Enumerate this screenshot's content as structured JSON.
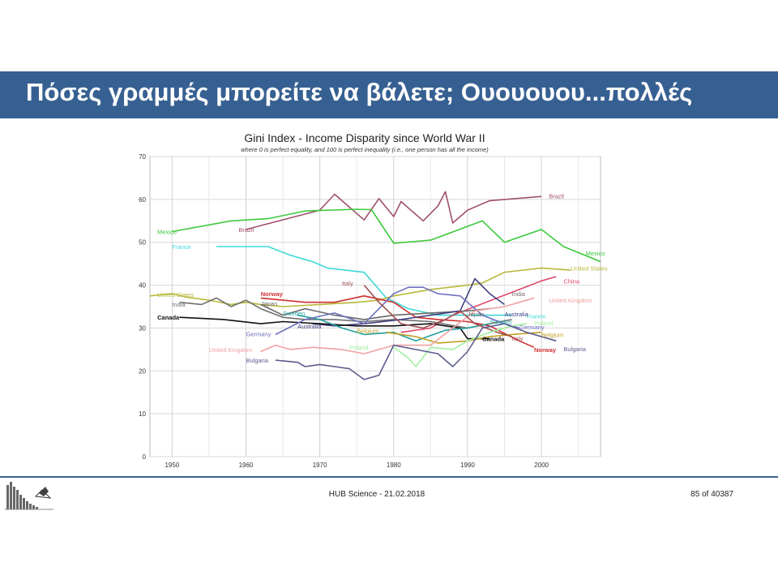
{
  "slide": {
    "title": "Πόσες γραμμές  μπορείτε να βάλετε;  Ουουουου...πολλές",
    "footer_center": "HUB Science - 21.02.2018",
    "footer_right": "85 of 40387"
  },
  "chart_data": {
    "type": "line",
    "title": "Gini Index - Income Disparity since World War II",
    "subtitle": "where 0 is perfect equality, and 100 is perfect inequality (i.e., one person has all the income)",
    "xlabel": "",
    "ylabel": "",
    "xlim": [
      1947,
      2008
    ],
    "ylim": [
      0,
      70
    ],
    "xticks": [
      1950,
      1960,
      1970,
      1980,
      1990,
      2000
    ],
    "yticks": [
      0,
      10,
      20,
      30,
      40,
      50,
      60,
      70
    ],
    "grid": "both",
    "series": [
      {
        "name": "Brazil",
        "color": "#a0506e",
        "label_start": {
          "x": 1959,
          "y": 53
        },
        "label_end": {
          "x": 2001,
          "y": 60.8
        },
        "points": [
          [
            1960,
            53
          ],
          [
            1970,
            57.5
          ],
          [
            1972,
            61.2
          ],
          [
            1976,
            55.2
          ],
          [
            1978,
            60.2
          ],
          [
            1980,
            56
          ],
          [
            1981,
            59.5
          ],
          [
            1983,
            56.5
          ],
          [
            1984,
            55
          ],
          [
            1986,
            58.5
          ],
          [
            1987,
            61.8
          ],
          [
            1988,
            54.5
          ],
          [
            1990,
            57.5
          ],
          [
            1993,
            59.7
          ],
          [
            2000,
            60.7
          ]
        ]
      },
      {
        "name": "Mexico",
        "color": "#3cc93c",
        "label_start": {
          "x": 1948,
          "y": 52.5
        },
        "label_end": {
          "x": 2006,
          "y": 47.5
        },
        "points": [
          [
            1950,
            52.5
          ],
          [
            1958,
            55
          ],
          [
            1963,
            55.5
          ],
          [
            1968,
            57.3
          ],
          [
            1975,
            57.7
          ],
          [
            1977,
            57.6
          ],
          [
            1980,
            49.8
          ],
          [
            1985,
            50.5
          ],
          [
            1992,
            55
          ],
          [
            1995,
            50
          ],
          [
            2000,
            53
          ],
          [
            2003,
            49
          ],
          [
            2008,
            45.5
          ]
        ]
      },
      {
        "name": "France",
        "color": "#40d8d8",
        "label_start": {
          "x": 1950,
          "y": 49
        },
        "label_end": {
          "x": 1998,
          "y": 32.8
        },
        "points": [
          [
            1956,
            49
          ],
          [
            1963,
            49
          ],
          [
            1966,
            47
          ],
          [
            1969,
            45.5
          ],
          [
            1971,
            44
          ],
          [
            1976,
            43
          ],
          [
            1979,
            37
          ],
          [
            1982,
            34.5
          ],
          [
            1986,
            33
          ],
          [
            1992,
            33
          ],
          [
            1996,
            33
          ]
        ]
      },
      {
        "name": "United States",
        "color": "#b8b83a",
        "label_start": {
          "x": 1948,
          "y": 37.8
        },
        "label_end": {
          "x": 2004,
          "y": 44
        },
        "points": [
          [
            1947,
            37.5
          ],
          [
            1950,
            38
          ],
          [
            1952,
            37.2
          ],
          [
            1955,
            36.5
          ],
          [
            1958,
            35.5
          ],
          [
            1960,
            36
          ],
          [
            1962,
            35.5
          ],
          [
            1965,
            35
          ],
          [
            1970,
            35.5
          ],
          [
            1975,
            36
          ],
          [
            1978,
            36.5
          ],
          [
            1980,
            37.5
          ],
          [
            1985,
            39
          ],
          [
            1990,
            40
          ],
          [
            1992,
            40.5
          ],
          [
            1995,
            43
          ],
          [
            2000,
            44
          ],
          [
            2004,
            43.5
          ]
        ]
      },
      {
        "name": "Norway",
        "color": "#d03030",
        "label_start": {
          "x": 1962,
          "y": 38
        },
        "label_end": {
          "x": 1999,
          "y": 25
        },
        "points": [
          [
            1962,
            37
          ],
          [
            1965,
            36.5
          ],
          [
            1968,
            36
          ],
          [
            1972,
            36
          ],
          [
            1976,
            37.5
          ],
          [
            1980,
            36
          ],
          [
            1983,
            32.5
          ],
          [
            1986,
            32
          ],
          [
            1990,
            31.5
          ],
          [
            1993,
            30.5
          ],
          [
            1997,
            27
          ],
          [
            1999,
            25.5
          ]
        ]
      },
      {
        "name": "China",
        "color": "#e04a6a",
        "label_start": {
          "x": 2003,
          "y": 41
        },
        "label_end": {
          "x": 2003,
          "y": 41
        },
        "points": [
          [
            1981,
            29
          ],
          [
            1985,
            30
          ],
          [
            1988,
            33
          ],
          [
            1991,
            35
          ],
          [
            1994,
            37
          ],
          [
            1997,
            39
          ],
          [
            2000,
            41
          ],
          [
            2002,
            42
          ]
        ]
      },
      {
        "name": "India",
        "color": "#707070",
        "label_start": {
          "x": 1950,
          "y": 35.6
        },
        "label_end": {
          "x": 1996,
          "y": 38
        },
        "points": [
          [
            1951,
            36
          ],
          [
            1954,
            35.5
          ],
          [
            1956,
            37
          ],
          [
            1958,
            35
          ],
          [
            1960,
            36.5
          ],
          [
            1962,
            34.5
          ],
          [
            1965,
            32.5
          ],
          [
            1968,
            32
          ],
          [
            1972,
            32
          ],
          [
            1976,
            31.5
          ],
          [
            1980,
            32
          ],
          [
            1985,
            31.5
          ],
          [
            1990,
            30
          ],
          [
            1993,
            31
          ],
          [
            1996,
            32
          ]
        ]
      },
      {
        "name": "Japan",
        "color": "#6a6a6a",
        "label_start": {
          "x": 1962,
          "y": 35.8
        },
        "label_end": {
          "x": 1990,
          "y": 33.3
        },
        "points": [
          [
            1962,
            35.5
          ],
          [
            1965,
            33
          ],
          [
            1968,
            34.5
          ],
          [
            1972,
            33
          ],
          [
            1976,
            32
          ],
          [
            1980,
            33
          ],
          [
            1985,
            33.5
          ],
          [
            1990,
            34
          ],
          [
            1993,
            34.5
          ]
        ]
      },
      {
        "name": "Australia",
        "color": "#404080",
        "label_start": {
          "x": 1967,
          "y": 30.5
        },
        "label_end": {
          "x": 1995,
          "y": 33.3
        },
        "points": [
          [
            1969,
            31
          ],
          [
            1972,
            30.5
          ],
          [
            1976,
            31
          ],
          [
            1981,
            32
          ],
          [
            1985,
            33
          ],
          [
            1989,
            34
          ],
          [
            1991,
            41.5
          ],
          [
            1993,
            38
          ],
          [
            1995,
            35.5
          ]
        ]
      },
      {
        "name": "Canada",
        "color": "#111111",
        "label_start": {
          "x": 1948,
          "y": 32.5
        },
        "label_end": {
          "x": 1992,
          "y": 27.5
        },
        "points": [
          [
            1951,
            32.5
          ],
          [
            1957,
            32
          ],
          [
            1962,
            31
          ],
          [
            1965,
            31.5
          ],
          [
            1970,
            31
          ],
          [
            1975,
            30.5
          ],
          [
            1980,
            30.5
          ],
          [
            1985,
            31
          ],
          [
            1989,
            30
          ],
          [
            1990,
            27.5
          ],
          [
            1993,
            27.5
          ]
        ]
      },
      {
        "name": "Sweden",
        "color": "#20a0a0",
        "label_start": {
          "x": 1965,
          "y": 33.5
        },
        "label_end": {
          "x": 1993,
          "y": 31.5
        },
        "points": [
          [
            1967,
            33
          ],
          [
            1970,
            32
          ],
          [
            1973,
            30
          ],
          [
            1976,
            28.5
          ],
          [
            1980,
            29
          ],
          [
            1983,
            27
          ],
          [
            1987,
            29.5
          ],
          [
            1990,
            30
          ],
          [
            1993,
            31
          ]
        ]
      },
      {
        "name": "Germany",
        "color": "#7070c0",
        "label_start": {
          "x": 1960,
          "y": 28.7
        },
        "label_end": {
          "x": 1997,
          "y": 30.3
        },
        "points": [
          [
            1964,
            28.5
          ],
          [
            1968,
            32
          ],
          [
            1972,
            33.5
          ],
          [
            1976,
            31
          ],
          [
            1980,
            38
          ],
          [
            1982,
            39.5
          ],
          [
            1984,
            39.5
          ],
          [
            1986,
            38
          ],
          [
            1989,
            37.5
          ],
          [
            1992,
            33
          ],
          [
            1995,
            31
          ],
          [
            1997,
            30
          ]
        ]
      },
      {
        "name": "Belgium",
        "color": "#c0a020",
        "label_start": {
          "x": 1975,
          "y": 29.4
        },
        "label_end": {
          "x": 2000,
          "y": 28.5
        },
        "points": [
          [
            1979,
            29
          ],
          [
            1983,
            28
          ],
          [
            1986,
            26.5
          ],
          [
            1990,
            27
          ],
          [
            1993,
            28
          ],
          [
            1996,
            28.5
          ],
          [
            2000,
            29
          ]
        ]
      },
      {
        "name": "United Kingdom",
        "color": "#f0a0a0",
        "label_start": {
          "x": 1955,
          "y": 25
        },
        "label_end": {
          "x": 2001,
          "y": 36.5
        },
        "points": [
          [
            1962,
            24.5
          ],
          [
            1964,
            26
          ],
          [
            1966,
            25
          ],
          [
            1969,
            25.5
          ],
          [
            1973,
            25
          ],
          [
            1976,
            24
          ],
          [
            1980,
            26
          ],
          [
            1985,
            26
          ],
          [
            1988,
            30
          ],
          [
            1991,
            34
          ],
          [
            1995,
            35
          ],
          [
            1999,
            37
          ]
        ]
      },
      {
        "name": "Italy",
        "color": "#a05050",
        "label_start": {
          "x": 1973,
          "y": 40.5
        },
        "label_end": {
          "x": 1996,
          "y": 27.6
        },
        "points": [
          [
            1976,
            40
          ],
          [
            1978,
            36
          ],
          [
            1981,
            31
          ],
          [
            1984,
            30
          ],
          [
            1987,
            32
          ],
          [
            1989,
            34
          ],
          [
            1991,
            31
          ],
          [
            1994,
            29
          ],
          [
            1996,
            28
          ]
        ]
      },
      {
        "name": "Poland",
        "color": "#a0f0a0",
        "label_start": {
          "x": 1974,
          "y": 25.5
        },
        "label_end": {
          "x": 1999,
          "y": 31.2
        },
        "points": [
          [
            1980,
            25.5
          ],
          [
            1982,
            23
          ],
          [
            1983,
            21
          ],
          [
            1985,
            25.5
          ],
          [
            1988,
            25
          ],
          [
            1990,
            27
          ],
          [
            1993,
            29
          ],
          [
            1996,
            30.5
          ],
          [
            1998,
            31
          ]
        ]
      },
      {
        "name": "Bulgaria",
        "color": "#5c5c90",
        "label_start": {
          "x": 1960,
          "y": 22.5
        },
        "label_end": {
          "x": 2003,
          "y": 25.2
        },
        "points": [
          [
            1964,
            22.5
          ],
          [
            1967,
            22
          ],
          [
            1968,
            21
          ],
          [
            1970,
            21.5
          ],
          [
            1972,
            21
          ],
          [
            1974,
            20.5
          ],
          [
            1976,
            18
          ],
          [
            1978,
            19
          ],
          [
            1980,
            26
          ],
          [
            1983,
            25
          ],
          [
            1986,
            24
          ],
          [
            1988,
            21
          ],
          [
            1990,
            24.5
          ],
          [
            1992,
            30
          ],
          [
            1995,
            31
          ],
          [
            1998,
            29
          ],
          [
            2002,
            27
          ]
        ]
      }
    ]
  }
}
